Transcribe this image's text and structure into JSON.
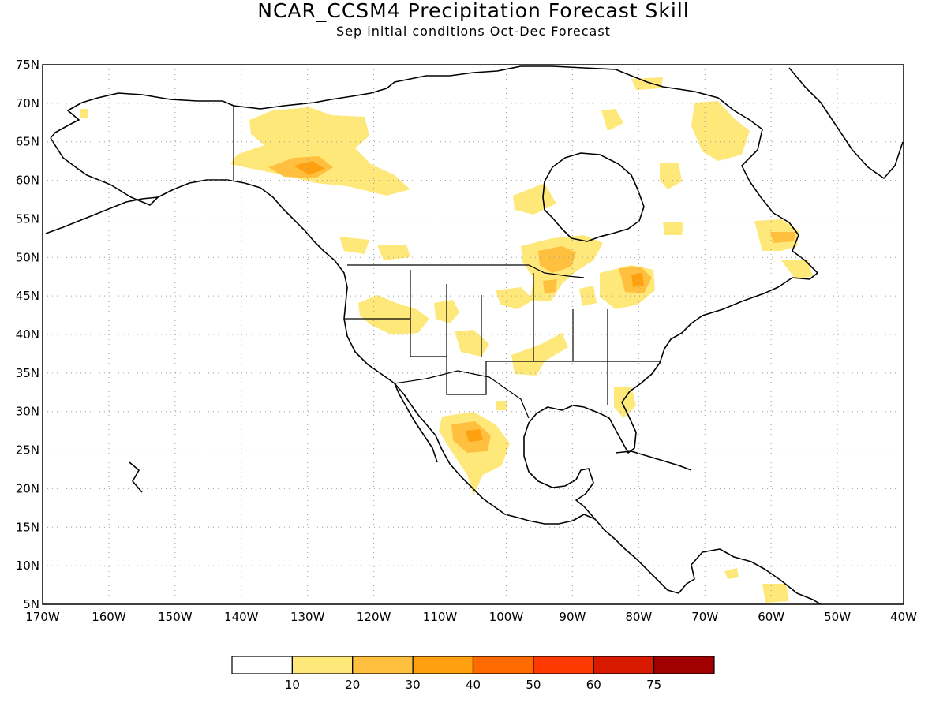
{
  "title": "NCAR_CCSM4 Precipitation Forecast Skill",
  "subtitle": "Sep initial conditions  Oct-Dec Forecast",
  "map": {
    "lon_range": [
      -170,
      -40
    ],
    "lat_range": [
      5,
      75
    ],
    "lat_ticks": [
      "75N",
      "70N",
      "65N",
      "60N",
      "55N",
      "50N",
      "45N",
      "40N",
      "35N",
      "30N",
      "25N",
      "20N",
      "15N",
      "10N",
      "5N"
    ],
    "lon_ticks": [
      "170W",
      "160W",
      "150W",
      "140W",
      "130W",
      "120W",
      "110W",
      "100W",
      "90W",
      "80W",
      "70W",
      "60W",
      "50W",
      "40W"
    ],
    "grid": true
  },
  "colorbar": {
    "labels": [
      "10",
      "20",
      "30",
      "40",
      "50",
      "60",
      "75"
    ],
    "colors": [
      "#ffffff",
      "#ffe87a",
      "#ffc040",
      "#ffa010",
      "#ff6a00",
      "#ff3a00",
      "#d81a00",
      "#a00000"
    ]
  },
  "colors": {
    "shade_light": "#ffe87a",
    "shade_mid": "#ffc040",
    "shade_strong": "#ffa010"
  }
}
